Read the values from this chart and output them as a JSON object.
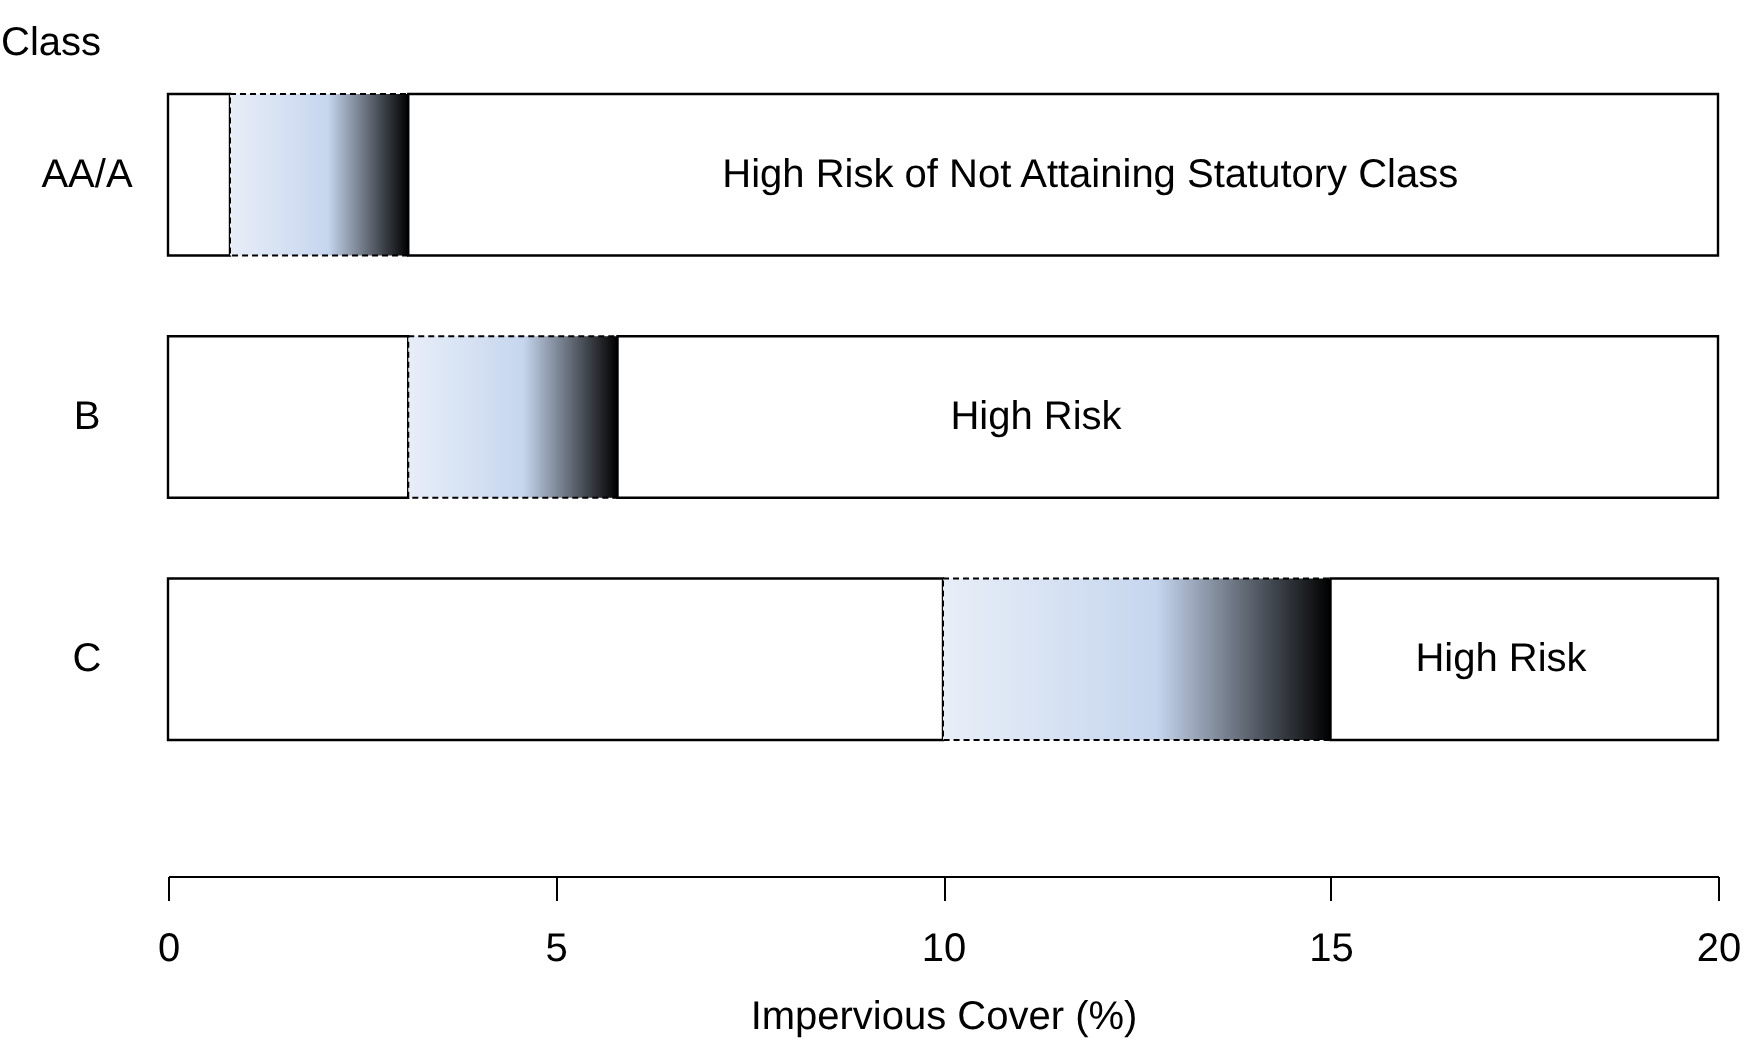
{
  "chart_data": {
    "type": "bar",
    "orientation": "horizontal",
    "stacked": true,
    "ylabel": "Class",
    "xlabel": "Impervious Cover (%)",
    "categories": [
      "AA/A",
      "B",
      "C"
    ],
    "series": [
      {
        "color": "#ffffff",
        "values": [
          0.8,
          3.1,
          10
        ]
      },
      {
        "color": "#000000",
        "values": [
          2.3,
          2.7,
          5
        ]
      },
      {
        "color": "#ffffff",
        "values": [
          16.9,
          14.2,
          5
        ]
      }
    ],
    "xlim": [
      0,
      20
    ],
    "xticks": [
      0,
      5,
      10,
      15,
      20
    ],
    "grid": false,
    "annotations": [
      "High Risk of Not Attaining Statutory Class",
      "High Risk",
      "High Risk"
    ]
  }
}
